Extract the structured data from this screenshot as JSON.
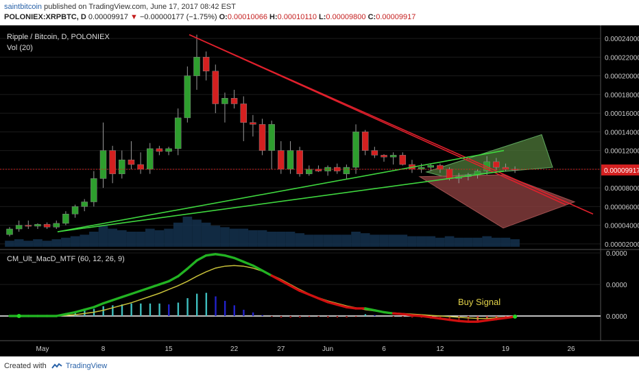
{
  "header": {
    "author": "saintbitcoin",
    "published": "published on TradingView.com, June 17, 2017 08:42 EST",
    "symbol": "POLONIEX:XRPBTC, D",
    "last": "0.00009917",
    "change_arrow": "▼",
    "change": "−0.00000177 (−1.75%)",
    "o_label": "O:",
    "o": "0.00010066",
    "h_label": "H:",
    "h": "0.00010110",
    "l_label": "L:",
    "l": "0.00009800",
    "c_label": "C:",
    "c": "0.00009917"
  },
  "footer": {
    "created_with": "Created with",
    "brand": "TradingView"
  },
  "colors": {
    "up": "#2e9e2e",
    "down": "#d42020",
    "red_line": "#e0202c",
    "green_line": "#3fd83f",
    "background": "#000000",
    "grid": "#1c1c1c"
  },
  "chart_data": [
    {
      "type": "candlestick",
      "title": "Ripple / Bitcoin, D, POLONIEX",
      "subtitle": "Vol (20)",
      "ylim": [
        1.4e-05,
        0.000254
      ],
      "y_ticks": [
        "0.00024000",
        "0.00022000",
        "0.00020000",
        "0.00018000",
        "0.00016000",
        "0.00014000",
        "0.00012000",
        "0.00010000",
        "0.00008000",
        "0.00006000",
        "0.00004000",
        "0.00002000"
      ],
      "last_price_label": "0.00009917",
      "x_ticks": [
        "May",
        "8",
        "15",
        "22",
        "27",
        "Jun",
        "6",
        "12",
        "19",
        "26"
      ],
      "candles": [
        [
          3e-05,
          3.8e-05,
          2.8e-05,
          3.6e-05
        ],
        [
          3.6e-05,
          4.5e-05,
          3.3e-05,
          4e-05
        ],
        [
          4e-05,
          4.5e-05,
          3.6e-05,
          3.9e-05
        ],
        [
          3.9e-05,
          4.2e-05,
          3.6e-05,
          4.1e-05
        ],
        [
          4.1e-05,
          4.3e-05,
          3.6e-05,
          3.8e-05
        ],
        [
          3.8e-05,
          4.5e-05,
          3.6e-05,
          4.2e-05
        ],
        [
          4.2e-05,
          5.5e-05,
          4e-05,
          5.2e-05
        ],
        [
          5.2e-05,
          6.2e-05,
          4.8e-05,
          6e-05
        ],
        [
          6e-05,
          6.8e-05,
          5.5e-05,
          6.5e-05
        ],
        [
          6.5e-05,
          9.8e-05,
          6e-05,
          9e-05
        ],
        [
          9e-05,
          0.00015,
          8e-05,
          0.00012
        ],
        [
          0.00012,
          0.000125,
          8.5e-05,
          9.5e-05
        ],
        [
          9.5e-05,
          0.00012,
          9e-05,
          0.00011
        ],
        [
          0.00011,
          0.00013,
          0.0001,
          0.000105
        ],
        [
          0.000105,
          0.000118,
          9.5e-05,
          0.0001
        ],
        [
          0.0001,
          0.000128,
          9.5e-05,
          0.000122
        ],
        [
          0.000122,
          0.000125,
          0.000115,
          0.000119
        ],
        [
          0.000119,
          0.000124,
          0.000115,
          0.000122
        ],
        [
          0.000122,
          0.000165,
          0.000115,
          0.000155
        ],
        [
          0.000155,
          0.00021,
          0.00015,
          0.0002
        ],
        [
          0.0002,
          0.000244,
          0.000185,
          0.00022
        ],
        [
          0.00022,
          0.000226,
          0.000195,
          0.000205
        ],
        [
          0.000205,
          0.000212,
          0.00016,
          0.00017
        ],
        [
          0.00017,
          0.000182,
          0.00015,
          0.000176
        ],
        [
          0.000176,
          0.000185,
          0.000165,
          0.00017
        ],
        [
          0.00017,
          0.000178,
          0.00013,
          0.00015
        ],
        [
          0.00015,
          0.000158,
          0.000135,
          0.000148
        ],
        [
          0.000148,
          0.000154,
          0.000115,
          0.00012
        ],
        [
          0.00012,
          0.000152,
          0.0001,
          0.000148
        ],
        [
          0.00012,
          0.00013,
          9.5e-05,
          0.0001
        ],
        [
          0.0001,
          0.00013,
          9.5e-05,
          0.00012
        ],
        [
          0.00012,
          0.000124,
          9.2e-05,
          9.5e-05
        ],
        [
          9.5e-05,
          0.000104,
          9.3e-05,
          0.0001
        ],
        [
          0.0001,
          0.000104,
          9.7e-05,
          9.8e-05
        ],
        [
          9.8e-05,
          0.000104,
          9.3e-05,
          0.000102
        ],
        [
          0.000102,
          0.000106,
          9.5e-05,
          9.8e-05
        ],
        [
          9.5e-05,
          0.000105,
          9e-05,
          0.000102
        ],
        [
          0.000102,
          0.000148,
          9.5e-05,
          0.00014
        ],
        [
          0.00014,
          0.000142,
          0.000115,
          0.00012
        ],
        [
          0.00012,
          0.000124,
          0.000112,
          0.000115
        ],
        [
          0.000115,
          0.000116,
          0.000108,
          0.000113
        ],
        [
          0.000113,
          0.000118,
          0.000105,
          0.000115
        ],
        [
          0.000115,
          0.000118,
          0.000104,
          0.000105
        ],
        [
          0.000105,
          0.00011,
          9.6e-05,
          0.0001
        ],
        [
          0.0001,
          0.000106,
          9.6e-05,
          0.000102
        ],
        [
          0.000102,
          0.000106,
          9.8e-05,
          0.000104
        ],
        [
          0.000104,
          0.000106,
          9.6e-05,
          0.0001
        ],
        [
          0.0001,
          0.000102,
          8.8e-05,
          9e-05
        ],
        [
          9e-05,
          9.6e-05,
          8.5e-05,
          9.2e-05
        ],
        [
          9.2e-05,
          9.6e-05,
          8.8e-05,
          9.4e-05
        ],
        [
          9.4e-05,
          0.0001,
          9e-05,
          9.8e-05
        ],
        [
          9.8e-05,
          0.000114,
          9.4e-05,
          0.000108
        ],
        [
          0.000108,
          0.000112,
          9.9e-05,
          0.000102
        ],
        [
          0.000102,
          0.000106,
          9.8e-05,
          0.0001
        ],
        [
          0.0001,
          0.000103,
          9.6e-05,
          9.9e-05
        ]
      ],
      "volume": [
        4,
        5,
        4,
        5,
        4,
        5,
        6,
        7,
        8,
        10,
        14,
        12,
        11,
        10,
        10,
        12,
        11,
        12,
        16,
        20,
        18,
        16,
        14,
        13,
        12,
        12,
        11,
        11,
        10,
        10,
        10,
        9,
        8,
        8,
        8,
        8,
        8,
        10,
        9,
        8,
        8,
        8,
        8,
        7,
        7,
        7,
        6,
        7,
        6,
        6,
        6,
        7,
        6,
        6,
        5
      ],
      "annotations": {
        "red_lines": [
          [
            [
              0,
              0.000244
            ],
            [
              865,
              5.2e-05
            ]
          ],
          [
            [
              20,
              0.000244
            ],
            [
              825,
              6.2e-05
            ]
          ]
        ],
        "green_lines": [
          [
            [
              84,
              3.3e-05
            ],
            [
              735,
              9.8e-05
            ]
          ],
          [
            [
              84,
              3.3e-05
            ],
            [
              735,
              0.00012
            ]
          ]
        ],
        "green_box": [
          [
            622,
            9.7e-05
          ],
          [
            790,
            0.000137
          ],
          [
            806,
            0.000102
          ],
          [
            648,
            9.2e-05
          ]
        ],
        "red_box": [
          [
            612,
            9.2e-05
          ],
          [
            733,
            9.4e-05
          ],
          [
            838,
            6.5e-05
          ],
          [
            734,
            3.7e-05
          ]
        ]
      }
    },
    {
      "type": "line",
      "title": "CM_Ult_MacD_MTF (60, 12, 26, 9)",
      "ylim": [
        -2e-05,
        1.2e-05
      ],
      "y_ticks": [
        "0.0000",
        "0.0000",
        "0.0000"
      ],
      "annotation": "Buy Signal",
      "macd": [
        0,
        0,
        0,
        0,
        0,
        0,
        0.3,
        0.6,
        1,
        1.4,
        2,
        2.5,
        3,
        3.5,
        4,
        4.5,
        5,
        5.5,
        6.3,
        7.5,
        8.8,
        9.6,
        9.8,
        9.6,
        9.2,
        8.6,
        8,
        7.2,
        6.4,
        5.6,
        4.8,
        4,
        3.4,
        2.8,
        2.2,
        1.8,
        1.4,
        1.2,
        1.2,
        0.9,
        0.6,
        0.4,
        0.3,
        0.1,
        0,
        -0.2,
        -0.4,
        -0.6,
        -0.8,
        -0.9,
        -0.9,
        -0.7,
        -0.5,
        -0.3,
        -0.1
      ],
      "signal": [
        0,
        0,
        0,
        0,
        0,
        0,
        0.1,
        0.2,
        0.4,
        0.6,
        0.9,
        1.3,
        1.7,
        2.1,
        2.6,
        3.1,
        3.6,
        4.2,
        4.8,
        5.5,
        6.3,
        7,
        7.6,
        7.9,
        8,
        7.9,
        7.6,
        7.1,
        6.5,
        5.8,
        5,
        4.2,
        3.5,
        2.9,
        2.4,
        2,
        1.6,
        1.3,
        1,
        0.8,
        0.6,
        0.5,
        0.4,
        0.3,
        0.2,
        0.1,
        0,
        -0.1,
        -0.2,
        -0.3,
        -0.4,
        -0.4,
        -0.3,
        -0.2,
        -0.1
      ],
      "histogram": [
        0,
        0,
        0,
        0,
        0,
        0,
        0.2,
        0.4,
        0.6,
        0.8,
        1.1,
        1.2,
        1.3,
        1.4,
        1.4,
        1.4,
        1.4,
        1.3,
        1.5,
        2,
        2.5,
        2.6,
        2.2,
        1.7,
        1.2,
        0.7,
        0.4,
        0.1,
        -0.1,
        -0.2,
        -0.2,
        -0.2,
        -0.1,
        -0.1,
        -0.2,
        -0.2,
        -0.2,
        -0.1,
        0.2,
        0.1,
        0,
        -0.1,
        -0.1,
        -0.2,
        -0.2,
        -0.3,
        -0.4,
        -0.5,
        -0.6,
        -0.6,
        -0.5,
        -0.3,
        -0.2,
        -0.1,
        0
      ]
    }
  ]
}
